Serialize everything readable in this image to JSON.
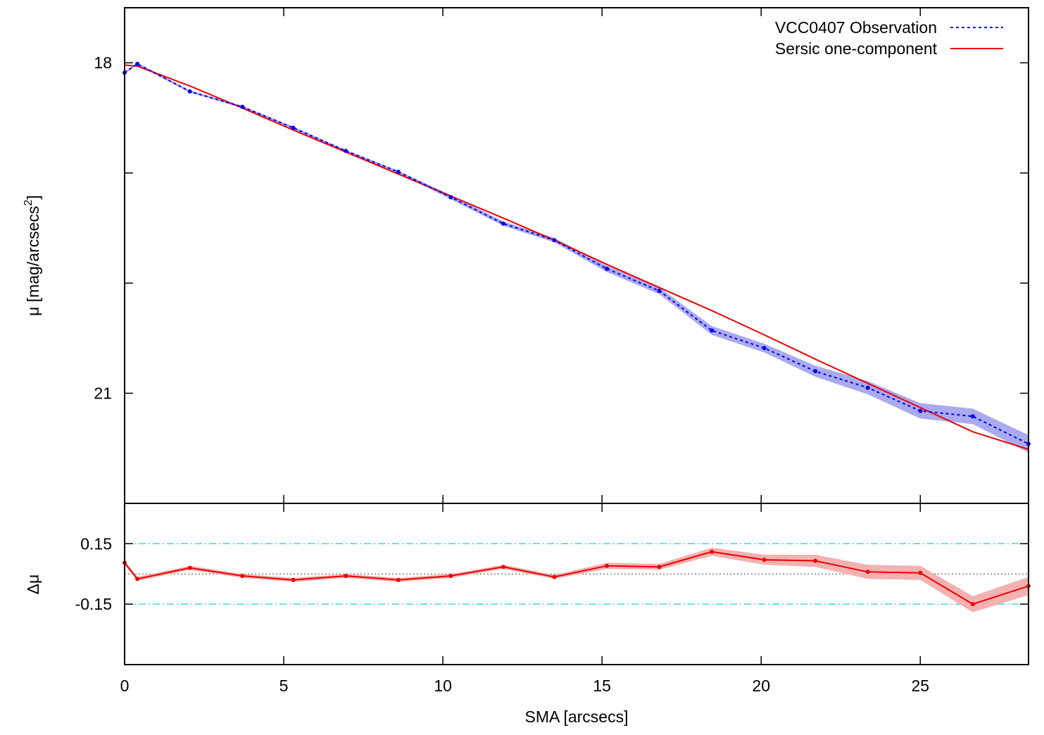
{
  "chart_data": [
    {
      "type": "line",
      "panel": "main",
      "ylabel_prefix": "μ [mag/arcsecs",
      "ylabel_sup": "2",
      "ylabel_suffix": "]",
      "xlim": [
        0,
        28.4
      ],
      "ylim": [
        22.0,
        17.5
      ],
      "y_inverted": true,
      "y_major_ticks": [
        18,
        21
      ],
      "y_minor_ticks": [
        19,
        20
      ],
      "y_tick_labels": [
        "18",
        "21"
      ],
      "x_ticks": [
        0,
        5,
        10,
        15,
        20,
        25
      ],
      "legend_position": "top-right",
      "legend": [
        {
          "label": "VCC0407 Observation",
          "style": "dotted",
          "color": "#0000ee"
        },
        {
          "label": "Sersic one-component",
          "style": "solid",
          "color": "#ee0000"
        }
      ],
      "series": [
        {
          "name": "VCC0407 Observation",
          "color": "#0000ee",
          "band_color": "#aaaaee",
          "x": [
            0.0,
            0.4,
            2.05,
            3.7,
            5.3,
            6.95,
            8.6,
            10.25,
            11.9,
            13.5,
            15.15,
            16.8,
            18.45,
            20.1,
            21.7,
            23.35,
            25.0,
            26.65,
            28.4
          ],
          "y": [
            18.09,
            18.01,
            18.26,
            18.4,
            18.59,
            18.8,
            18.99,
            19.22,
            19.46,
            19.61,
            19.87,
            20.07,
            20.43,
            20.59,
            20.8,
            20.95,
            21.16,
            21.21,
            21.46
          ],
          "err": [
            0.01,
            0.01,
            0.01,
            0.01,
            0.01,
            0.01,
            0.01,
            0.02,
            0.02,
            0.02,
            0.03,
            0.03,
            0.04,
            0.04,
            0.05,
            0.06,
            0.07,
            0.07,
            0.08
          ]
        },
        {
          "name": "Sersic one-component",
          "color": "#ee0000",
          "x": [
            0.0,
            0.4,
            2.05,
            3.7,
            5.3,
            6.95,
            8.6,
            10.25,
            11.9,
            13.5,
            15.15,
            16.8,
            18.45,
            20.1,
            21.7,
            23.35,
            25.0,
            26.65,
            28.4
          ],
          "y": [
            18.02,
            18.03,
            18.21,
            18.41,
            18.61,
            18.81,
            19.01,
            19.21,
            19.41,
            19.61,
            19.83,
            20.04,
            20.25,
            20.47,
            20.69,
            20.91,
            21.13,
            21.35,
            21.51
          ]
        }
      ]
    },
    {
      "type": "line",
      "panel": "residual",
      "ylabel": "Δμ",
      "xlabel": "SMA [arcsecs]",
      "xlim": [
        0,
        28.4
      ],
      "ylim": [
        -0.45,
        0.35
      ],
      "y_tick_values": [
        0.15,
        -0.15
      ],
      "y_tick_labels": [
        "0.15",
        "-0.15"
      ],
      "x_tick_labels": [
        "0",
        "5",
        "10",
        "15",
        "20",
        "25"
      ],
      "reference_lines": [
        {
          "y": 0.15,
          "style": "dash-dot",
          "color": "#40d8d8"
        },
        {
          "y": -0.15,
          "style": "dash-dot",
          "color": "#40d8d8"
        },
        {
          "y": 0.0,
          "style": "dotted",
          "color": "#444444"
        }
      ],
      "series": [
        {
          "name": "",
          "color": "#ee0000",
          "band_color": "#f3b1b1",
          "x": [
            0.0,
            0.4,
            2.05,
            3.7,
            5.3,
            6.95,
            8.6,
            10.25,
            11.9,
            13.5,
            15.15,
            16.8,
            18.45,
            20.1,
            21.7,
            23.35,
            25.0,
            26.65,
            28.4
          ],
          "y": [
            0.055,
            -0.025,
            0.03,
            -0.01,
            -0.03,
            -0.01,
            -0.03,
            -0.01,
            0.035,
            -0.015,
            0.04,
            0.035,
            0.11,
            0.07,
            0.065,
            0.01,
            0.005,
            -0.15,
            -0.06
          ],
          "err": [
            0.01,
            0.01,
            0.01,
            0.01,
            0.01,
            0.01,
            0.01,
            0.01,
            0.01,
            0.01,
            0.015,
            0.015,
            0.02,
            0.025,
            0.03,
            0.035,
            0.035,
            0.04,
            0.045
          ]
        }
      ]
    }
  ]
}
